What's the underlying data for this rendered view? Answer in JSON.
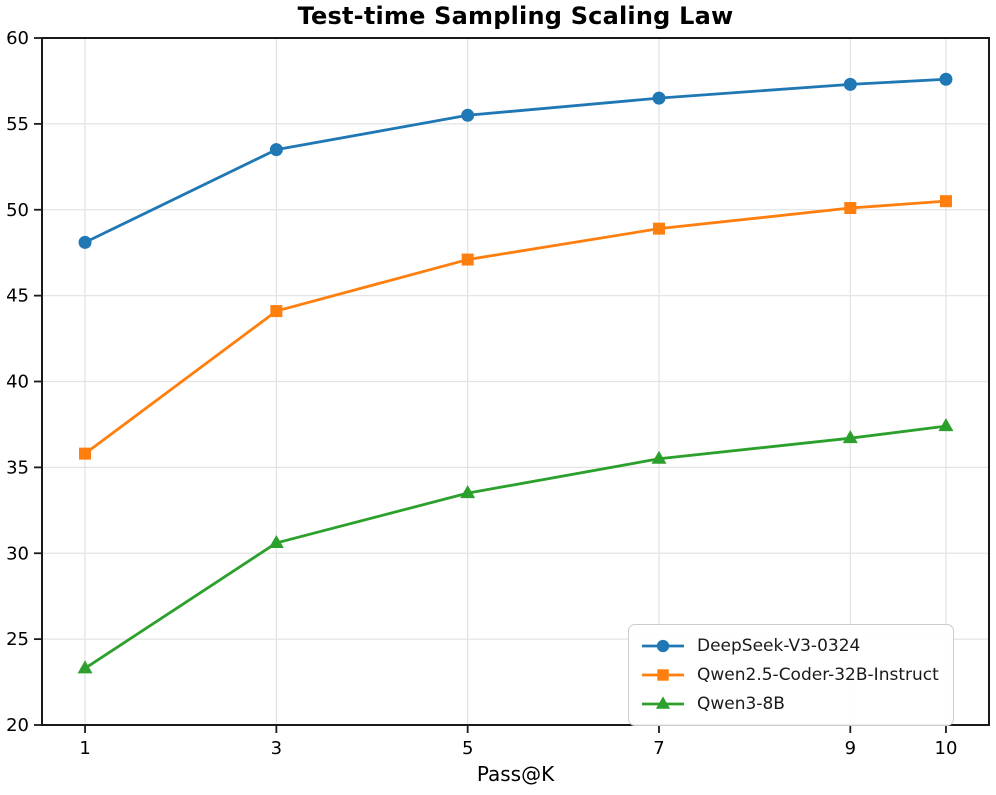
{
  "chart_data": {
    "type": "line",
    "title": "Test-time Sampling Scaling Law",
    "xlabel": "Pass@K",
    "ylabel": "",
    "x": [
      1,
      3,
      5,
      7,
      9,
      10
    ],
    "series": [
      {
        "name": "DeepSeek-V3-0324",
        "color": "#1f77b4",
        "marker": "circle",
        "values": [
          48.1,
          53.5,
          55.5,
          56.5,
          57.3,
          57.6
        ]
      },
      {
        "name": "Qwen2.5-Coder-32B-Instruct",
        "color": "#ff7f0e",
        "marker": "square",
        "values": [
          35.8,
          44.1,
          47.1,
          48.9,
          50.1,
          50.5
        ]
      },
      {
        "name": "Qwen3-8B",
        "color": "#2ca02c",
        "marker": "triangle",
        "values": [
          23.3,
          30.6,
          33.5,
          35.5,
          36.7,
          37.4
        ]
      }
    ],
    "xlim": [
      0.55,
      10.45
    ],
    "ylim": [
      20,
      60
    ],
    "xticks": [
      1,
      3,
      5,
      7,
      9,
      10
    ],
    "yticks": [
      60,
      55,
      50,
      45,
      40,
      35,
      30,
      25,
      20
    ],
    "grid": true,
    "grid_color": "#e4e4e4",
    "spine_color": "#1a1a1a",
    "legend_position": "lower right"
  }
}
